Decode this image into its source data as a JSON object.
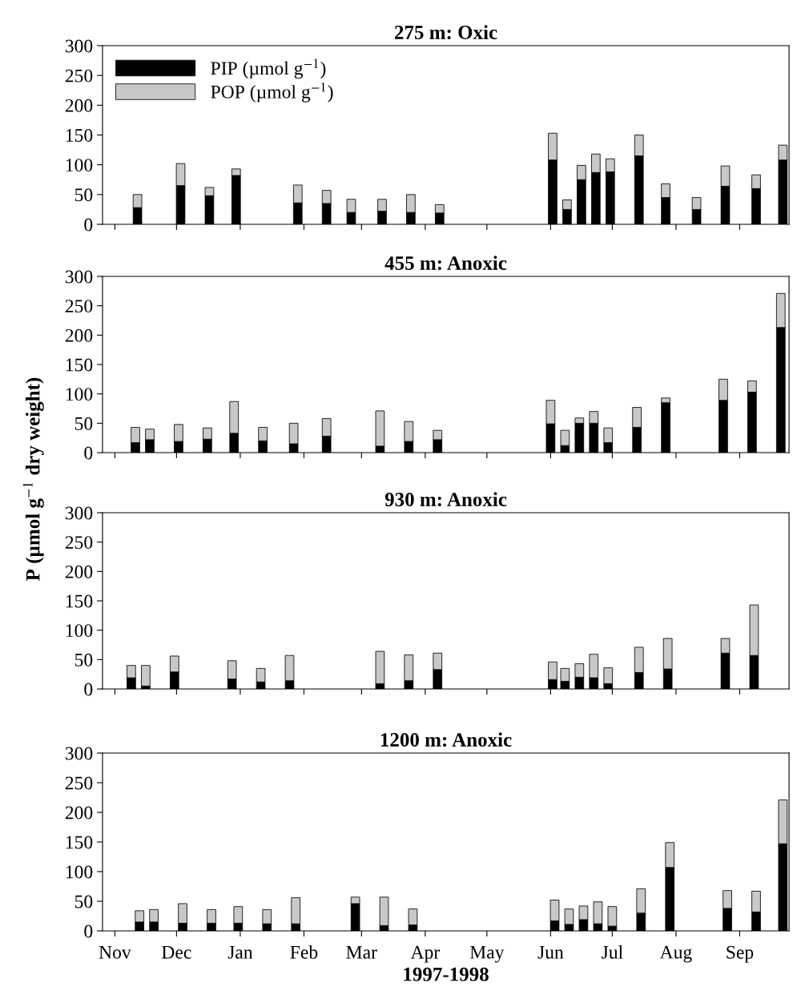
{
  "chart_data": [
    {
      "type": "bar",
      "stacked": true,
      "title": "275 m: Oxic",
      "legend": "top left",
      "tick_labels": "y",
      "x": [
        "1997-11-12",
        "1997-12-03",
        "1997-12-17",
        "1997-12-30",
        "1998-01-29",
        "1998-02-12",
        "1998-02-24",
        "1998-03-11",
        "1998-03-25",
        "1998-04-08",
        "1998-06-02",
        "1998-06-09",
        "1998-06-16",
        "1998-06-23",
        "1998-06-30",
        "1998-07-14",
        "1998-07-27",
        "1998-08-11",
        "1998-08-25",
        "1998-09-09",
        "1998-09-22"
      ],
      "series": [
        {
          "name": "PIP (µmol g$^{−1}$)",
          "color": "#000000",
          "values": [
            28,
            65,
            48,
            82,
            36,
            35,
            20,
            22,
            20,
            19,
            108,
            25,
            75,
            87,
            88,
            115,
            45,
            25,
            64,
            60,
            108
          ]
        },
        {
          "name": "POP (µmol g$^{−1}$)",
          "color": "#c8c8c8",
          "values": [
            22,
            37,
            14,
            11,
            30,
            22,
            22,
            20,
            30,
            14,
            45,
            16,
            24,
            31,
            22,
            35,
            23,
            20,
            34,
            23,
            25
          ]
        }
      ],
      "xlim": [
        "1997-10-26",
        "1998-09-25"
      ],
      "xticks": [
        {
          "value": "1997-11-01",
          "label": null
        },
        {
          "value": "1997-12-01",
          "label": null
        },
        {
          "value": "1998-01-01",
          "label": null
        },
        {
          "value": "1998-02-01",
          "label": null
        },
        {
          "value": "1998-03-01",
          "label": null
        },
        {
          "value": "1998-04-01",
          "label": null
        },
        {
          "value": "1998-05-01",
          "label": null
        },
        {
          "value": "1998-06-01",
          "label": null
        },
        {
          "value": "1998-07-01",
          "label": null
        },
        {
          "value": "1998-08-01",
          "label": null
        },
        {
          "value": "1998-09-01",
          "label": null
        }
      ],
      "ylim": [
        0,
        300
      ],
      "yticks": [
        0,
        50,
        100,
        150,
        200,
        250,
        300
      ],
      "grid": false
    },
    {
      "type": "bar",
      "stacked": true,
      "title": "455 m: Anoxic",
      "ylabel": "P (µmol g$^{−1}$ dry weight)",
      "tick_labels": "y",
      "x": [
        "1997-11-11",
        "1997-11-18",
        "1997-12-02",
        "1997-12-16",
        "1997-12-29",
        "1998-01-12",
        "1998-01-27",
        "1998-02-12",
        "1998-03-10",
        "1998-03-24",
        "1998-04-07",
        "1998-06-01",
        "1998-06-08",
        "1998-06-15",
        "1998-06-22",
        "1998-06-29",
        "1998-07-13",
        "1998-07-27",
        "1998-08-24",
        "1998-09-07",
        "1998-09-21"
      ],
      "series": [
        {
          "color": "#000000",
          "values": [
            17,
            22,
            19,
            23,
            33,
            20,
            15,
            28,
            11,
            19,
            22,
            49,
            12,
            50,
            50,
            17,
            43,
            85,
            89,
            103,
            213
          ]
        },
        {
          "color": "#c8c8c8",
          "values": [
            26,
            18,
            29,
            19,
            54,
            23,
            35,
            30,
            60,
            34,
            16,
            40,
            26,
            9,
            20,
            25,
            34,
            8,
            36,
            19,
            58
          ]
        }
      ],
      "xlim": [
        "1997-10-26",
        "1998-09-25"
      ],
      "xticks": [
        {
          "value": "1997-11-01",
          "label": null
        },
        {
          "value": "1997-12-01",
          "label": null
        },
        {
          "value": "1998-01-01",
          "label": null
        },
        {
          "value": "1998-02-01",
          "label": null
        },
        {
          "value": "1998-03-01",
          "label": null
        },
        {
          "value": "1998-04-01",
          "label": null
        },
        {
          "value": "1998-05-01",
          "label": null
        },
        {
          "value": "1998-06-01",
          "label": null
        },
        {
          "value": "1998-07-01",
          "label": null
        },
        {
          "value": "1998-08-01",
          "label": null
        },
        {
          "value": "1998-09-01",
          "label": null
        }
      ],
      "ylim": [
        0,
        300
      ],
      "yticks": [
        0,
        50,
        100,
        150,
        200,
        250,
        300
      ],
      "grid": false
    },
    {
      "type": "bar",
      "stacked": true,
      "title": "930 m: Anoxic",
      "tick_labels": "y",
      "x": [
        "1997-11-09",
        "1997-11-16",
        "1997-11-30",
        "1997-12-28",
        "1998-01-11",
        "1998-01-25",
        "1998-03-10",
        "1998-03-24",
        "1998-04-07",
        "1998-06-02",
        "1998-06-08",
        "1998-06-15",
        "1998-06-22",
        "1998-06-29",
        "1998-07-14",
        "1998-07-28",
        "1998-08-25",
        "1998-09-08"
      ],
      "series": [
        {
          "color": "#000000",
          "values": [
            19,
            5,
            29,
            17,
            12,
            14,
            9,
            14,
            33,
            16,
            13,
            20,
            19,
            9,
            28,
            34,
            61,
            57
          ]
        },
        {
          "color": "#c8c8c8",
          "values": [
            21,
            35,
            27,
            31,
            23,
            43,
            55,
            44,
            28,
            30,
            22,
            23,
            40,
            27,
            43,
            52,
            25,
            86
          ]
        }
      ],
      "xlim": [
        "1997-10-26",
        "1998-09-25"
      ],
      "xticks": [
        {
          "value": "1997-11-01",
          "label": null
        },
        {
          "value": "1997-12-01",
          "label": null
        },
        {
          "value": "1998-01-01",
          "label": null
        },
        {
          "value": "1998-02-01",
          "label": null
        },
        {
          "value": "1998-03-01",
          "label": null
        },
        {
          "value": "1998-04-01",
          "label": null
        },
        {
          "value": "1998-05-01",
          "label": null
        },
        {
          "value": "1998-06-01",
          "label": null
        },
        {
          "value": "1998-07-01",
          "label": null
        },
        {
          "value": "1998-08-01",
          "label": null
        },
        {
          "value": "1998-09-01",
          "label": null
        }
      ],
      "ylim": [
        0,
        300
      ],
      "yticks": [
        0,
        50,
        100,
        150,
        200,
        250,
        300
      ],
      "grid": false
    },
    {
      "type": "bar",
      "stacked": true,
      "title": "1200 m: Anoxic",
      "xlabel": "1997-1998",
      "x": [
        "1997-11-13",
        "1997-11-20",
        "1997-12-04",
        "1997-12-18",
        "1997-12-31",
        "1998-01-14",
        "1998-01-28",
        "1998-02-26",
        "1998-03-12",
        "1998-03-26",
        "1998-06-03",
        "1998-06-10",
        "1998-06-17",
        "1998-06-24",
        "1998-07-01",
        "1998-07-15",
        "1998-07-29",
        "1998-08-26",
        "1998-09-09",
        "1998-09-22"
      ],
      "series": [
        {
          "color": "#000000",
          "values": [
            15,
            15,
            13,
            13,
            13,
            12,
            12,
            46,
            9,
            10,
            17,
            11,
            19,
            12,
            8,
            30,
            107,
            38,
            32,
            147
          ]
        },
        {
          "color": "#c8c8c8",
          "values": [
            19,
            21,
            33,
            23,
            28,
            24,
            44,
            11,
            48,
            27,
            35,
            26,
            23,
            37,
            33,
            41,
            42,
            30,
            35,
            74
          ]
        }
      ],
      "xlim": [
        "1997-10-26",
        "1998-09-25"
      ],
      "xticks": [
        {
          "value": "1997-11-01",
          "label": "Nov"
        },
        {
          "value": "1997-12-01",
          "label": "Dec"
        },
        {
          "value": "1998-01-01",
          "label": "Jan"
        },
        {
          "value": "1998-02-01",
          "label": "Feb"
        },
        {
          "value": "1998-03-01",
          "label": "Mar"
        },
        {
          "value": "1998-04-01",
          "label": "Apr"
        },
        {
          "value": "1998-05-01",
          "label": "May"
        },
        {
          "value": "1998-06-01",
          "label": "Jun"
        },
        {
          "value": "1998-07-01",
          "label": "Jul"
        },
        {
          "value": "1998-08-01",
          "label": "Aug"
        },
        {
          "value": "1998-09-01",
          "label": "Sep"
        }
      ],
      "ylim": [
        0,
        300
      ],
      "yticks": [
        0,
        50,
        100,
        150,
        200,
        250,
        300
      ],
      "grid": false
    }
  ]
}
